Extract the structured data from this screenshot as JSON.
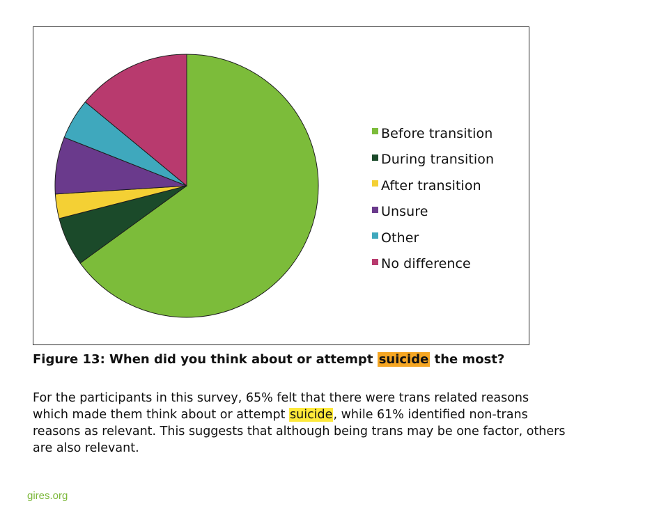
{
  "chart_data": {
    "type": "pie",
    "title": "",
    "legend_position": "right",
    "slices": [
      {
        "label": "Before transition",
        "value": 65,
        "color": "#7cbc3a"
      },
      {
        "label": "During transition",
        "value": 6,
        "color": "#1b4a2a"
      },
      {
        "label": "After transition",
        "value": 3,
        "color": "#f4d034"
      },
      {
        "label": "Unsure",
        "value": 7,
        "color": "#6a3a8c"
      },
      {
        "label": "Other",
        "value": 5,
        "color": "#3fa8bd"
      },
      {
        "label": "No difference",
        "value": 14,
        "color": "#b83a6e"
      }
    ]
  },
  "caption": {
    "before": "Figure 13: When did you think about or attempt ",
    "highlight": "suicide",
    "after": " the most?"
  },
  "body": {
    "line1": "For the participants in this survey, 65% felt that there were trans related reasons",
    "line2_before": "which made them think about or attempt ",
    "line2_highlight": "suicide",
    "line2_after": ", while 61% identified non-trans",
    "line3": "reasons as relevant. This suggests that although being trans may be one factor, others",
    "line4": "are also relevant."
  },
  "source": "gires.org"
}
